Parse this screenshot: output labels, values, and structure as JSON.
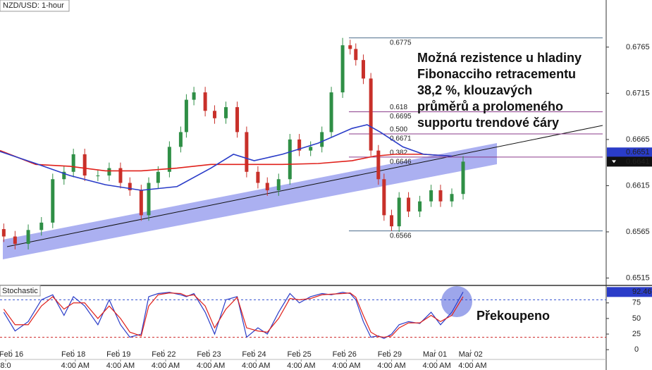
{
  "chart_data": [
    {
      "type": "candlestick",
      "title": "NZD/USD: 1-hour",
      "x": [
        2,
        8,
        15,
        22,
        28,
        34,
        39,
        45,
        52,
        58,
        64,
        69,
        75,
        79,
        84,
        90,
        96,
        99,
        103,
        109,
        114,
        120,
        126,
        131,
        137,
        142,
        148,
        154,
        159,
        165,
        171,
        176,
        182,
        186,
        189,
        193,
        197,
        201,
        204,
        208,
        212,
        217,
        223,
        229,
        234,
        240,
        246
      ],
      "open": [
        0.6568,
        0.656,
        0.6552,
        0.6567,
        0.6575,
        0.6622,
        0.663,
        0.6649,
        0.6626,
        0.6626,
        0.6634,
        0.6618,
        0.661,
        0.6583,
        0.6618,
        0.663,
        0.6657,
        0.6673,
        0.6708,
        0.6716,
        0.6696,
        0.6688,
        0.67,
        0.6673,
        0.663,
        0.6618,
        0.661,
        0.6622,
        0.6665,
        0.6653,
        0.6657,
        0.6673,
        0.6716,
        0.6767,
        0.6763,
        0.6751,
        0.6731,
        0.6653,
        0.6622,
        0.6583,
        0.6571,
        0.6602,
        0.6587,
        0.6598,
        0.661,
        0.6598,
        0.6606
      ],
      "high": [
        0.6574,
        0.6566,
        0.6573,
        0.6581,
        0.6628,
        0.6636,
        0.6655,
        0.6655,
        0.6632,
        0.664,
        0.664,
        0.6624,
        0.6616,
        0.6624,
        0.6636,
        0.6663,
        0.6679,
        0.6714,
        0.6722,
        0.6722,
        0.6702,
        0.6706,
        0.6706,
        0.6679,
        0.6636,
        0.6624,
        0.6628,
        0.6671,
        0.6671,
        0.6663,
        0.6679,
        0.6722,
        0.6775,
        0.6773,
        0.6769,
        0.6757,
        0.6737,
        0.6659,
        0.6628,
        0.6589,
        0.6608,
        0.6608,
        0.6604,
        0.6616,
        0.6616,
        0.6612,
        0.6647
      ],
      "low": [
        0.6554,
        0.6546,
        0.6546,
        0.6561,
        0.6569,
        0.6616,
        0.6624,
        0.662,
        0.662,
        0.662,
        0.6612,
        0.6604,
        0.6577,
        0.6577,
        0.6612,
        0.6624,
        0.6651,
        0.6667,
        0.6702,
        0.669,
        0.6682,
        0.6682,
        0.6667,
        0.6624,
        0.6612,
        0.6604,
        0.6604,
        0.6616,
        0.6647,
        0.6647,
        0.6651,
        0.6667,
        0.671,
        0.6757,
        0.6745,
        0.6725,
        0.6647,
        0.6616,
        0.6577,
        0.6566,
        0.6565,
        0.6581,
        0.6581,
        0.6592,
        0.6592,
        0.6592,
        0.66
      ],
      "close": [
        0.656,
        0.6552,
        0.6567,
        0.6575,
        0.6622,
        0.663,
        0.6649,
        0.6626,
        0.6626,
        0.6634,
        0.6618,
        0.661,
        0.6583,
        0.6618,
        0.663,
        0.6657,
        0.6673,
        0.6708,
        0.6716,
        0.6696,
        0.6688,
        0.67,
        0.6673,
        0.663,
        0.6618,
        0.661,
        0.6622,
        0.6665,
        0.6653,
        0.6657,
        0.6673,
        0.6716,
        0.6767,
        0.6763,
        0.6751,
        0.6731,
        0.6653,
        0.6622,
        0.6583,
        0.6571,
        0.6602,
        0.6587,
        0.6598,
        0.661,
        0.6598,
        0.6606,
        0.6641
      ],
      "up_color": "#2f8f46",
      "down_color": "#c8302a",
      "series": [
        {
          "color": "#e0201a",
          "x": [
            0,
            19,
            37,
            56,
            75,
            94,
            112,
            131,
            150,
            169,
            187,
            199,
            210,
            225,
            240
          ],
          "values": [
            0.6653,
            0.6638,
            0.6636,
            0.6631,
            0.6631,
            0.6634,
            0.6638,
            0.6638,
            0.6638,
            0.6639,
            0.6642,
            0.6647,
            0.6649,
            0.6649,
            0.6647
          ]
        },
        {
          "color": "#2a3cc8",
          "x": [
            0,
            19,
            37,
            56,
            75,
            94,
            112,
            124,
            135,
            150,
            169,
            187,
            195,
            202,
            214,
            225,
            240
          ],
          "values": [
            0.6652,
            0.6639,
            0.6626,
            0.6616,
            0.661,
            0.6614,
            0.6634,
            0.6649,
            0.6642,
            0.6649,
            0.6661,
            0.6677,
            0.6681,
            0.6673,
            0.6657,
            0.6649,
            0.6647
          ]
        }
      ],
      "xlim": [
        0,
        322
      ],
      "ylim": [
        0.6507,
        0.6816
      ],
      "yticks": [
        0.6515,
        0.6565,
        0.6615,
        0.6665,
        0.6715,
        0.6765
      ],
      "fib_levels": [
        {
          "value": 0.6775,
          "color": "#4a6a8a"
        },
        {
          "ratio": "0.618",
          "value": 0.6695,
          "color": "#8a3a8a"
        },
        {
          "ratio": "0.500",
          "value": 0.6671,
          "color": "#8a3a8a"
        },
        {
          "ratio": "0.382",
          "value": 0.6646,
          "color": "#8a3a8a"
        },
        {
          "value": 0.6566,
          "color": "#4a6a8a"
        }
      ],
      "price_tags": [
        {
          "value": 0.6651,
          "color": "#2a3cc8"
        }
      ],
      "annotation": [
        "Možná rezistence u hladiny",
        "Fibonacciho retracementu",
        "38,2 %, klouzavých",
        "průměrů a prolomeného",
        "supportu trendové čáry"
      ]
    },
    {
      "type": "line",
      "title": "Stochastic",
      "x": [
        2,
        8,
        15,
        22,
        28,
        34,
        39,
        45,
        52,
        58,
        64,
        69,
        75,
        79,
        84,
        90,
        96,
        99,
        103,
        109,
        114,
        120,
        126,
        131,
        137,
        142,
        148,
        154,
        159,
        165,
        171,
        176,
        182,
        186,
        189,
        193,
        197,
        201,
        204,
        208,
        212,
        217,
        223,
        229,
        234,
        240,
        246
      ],
      "series": [
        {
          "color": "#2a3cc8",
          "values": [
            60,
            30,
            45,
            80,
            88,
            55,
            85,
            70,
            40,
            80,
            40,
            20,
            25,
            85,
            90,
            92,
            88,
            85,
            90,
            60,
            25,
            80,
            85,
            20,
            35,
            25,
            60,
            90,
            75,
            85,
            90,
            88,
            92,
            90,
            80,
            45,
            20,
            22,
            18,
            25,
            40,
            45,
            42,
            60,
            40,
            60,
            92.46
          ]
        },
        {
          "color": "#e0201a",
          "values": [
            65,
            40,
            40,
            70,
            85,
            65,
            75,
            75,
            50,
            70,
            50,
            28,
            22,
            70,
            88,
            91,
            90,
            86,
            88,
            70,
            35,
            65,
            84,
            35,
            30,
            28,
            50,
            82,
            80,
            82,
            88,
            89,
            90,
            91,
            84,
            55,
            28,
            21,
            20,
            22,
            35,
            43,
            43,
            55,
            45,
            55,
            85
          ]
        }
      ],
      "xlim": [
        0,
        322
      ],
      "ylim": [
        -10,
        103
      ],
      "yticks": [
        0,
        25,
        50,
        75
      ],
      "levels": [
        {
          "value": 80,
          "color": "#3050d0"
        },
        {
          "value": 20,
          "color": "#d03030"
        }
      ],
      "xticks": [
        {
          "value": 6,
          "label": "Feb 16"
        },
        {
          "value": 39,
          "label": "Feb 18"
        },
        {
          "value": 63,
          "label": "Feb 19"
        },
        {
          "value": 87,
          "label": "Feb 22"
        },
        {
          "value": 111,
          "label": "Feb 23"
        },
        {
          "value": 135,
          "label": "Feb 24"
        },
        {
          "value": 159,
          "label": "Feb 25"
        },
        {
          "value": 183,
          "label": "Feb 26"
        },
        {
          "value": 207,
          "label": "Feb 29"
        },
        {
          "value": 231,
          "label": "Mar 01"
        },
        {
          "value": 250,
          "label": "Mar 02"
        }
      ],
      "xticks2": [
        {
          "value": 3,
          "label": "8:0"
        },
        {
          "value": 40,
          "label": "4:00 AM"
        },
        {
          "value": 64,
          "label": "4:00 AM"
        },
        {
          "value": 88,
          "label": "4:00 AM"
        },
        {
          "value": 112,
          "label": "4:00 AM"
        },
        {
          "value": 136,
          "label": "4:00 AM"
        },
        {
          "value": 160,
          "label": "4:00 AM"
        },
        {
          "value": 184,
          "label": "4:00 AM"
        },
        {
          "value": 208,
          "label": "4:00 AM"
        },
        {
          "value": 232,
          "label": "4:00 AM"
        },
        {
          "value": 251,
          "label": "4:00 AM"
        }
      ],
      "annotation": "Překoupeno"
    }
  ]
}
